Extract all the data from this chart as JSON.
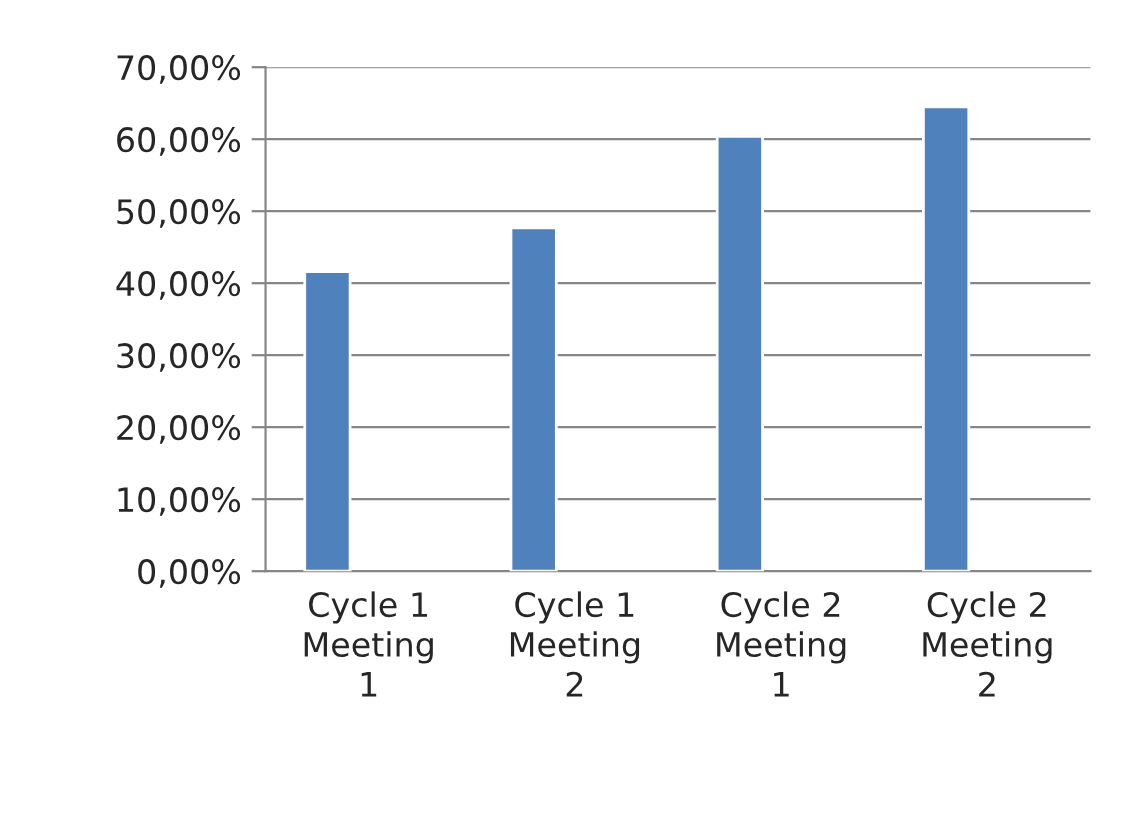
{
  "chart_data": {
    "type": "bar",
    "categories": [
      "Cycle 1\nMeeting\n1",
      "Cycle 1\nMeeting\n2",
      "Cycle 2\nMeeting\n1",
      "Cycle 2\nMeeting\n2"
    ],
    "values": [
      41.6,
      47.7,
      60.4,
      64.5
    ],
    "color": "#4f81bd",
    "ylim": [
      0,
      70
    ],
    "yticks": [
      {
        "value": 0,
        "label": "0,00%"
      },
      {
        "value": 10,
        "label": "10,00%"
      },
      {
        "value": 20,
        "label": "20,00%"
      },
      {
        "value": 30,
        "label": "30,00%"
      },
      {
        "value": 40,
        "label": "40,00%"
      },
      {
        "value": 50,
        "label": "50,00%"
      },
      {
        "value": 60,
        "label": "60,00%"
      },
      {
        "value": 70,
        "label": "70,00%"
      }
    ],
    "grid": "y"
  }
}
